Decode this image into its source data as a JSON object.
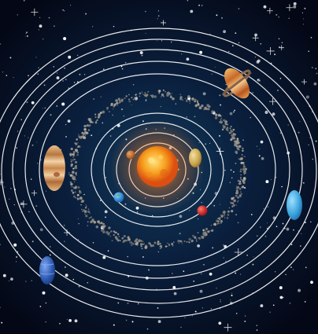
{
  "scene": {
    "subject": "solar-system",
    "palette": {
      "space_inner": "#123a5c",
      "space_mid": "#0a1f3d",
      "space_outer": "#040816",
      "orbit": "#ffffff",
      "asteroid": "#8f8778",
      "sun_core": "#ffd24a",
      "sun_edge": "#e0560f",
      "sun_glow": "#ff9a1f"
    },
    "bodies": [
      {
        "name": "sun",
        "color": "#f08a1c"
      },
      {
        "name": "mercury",
        "color": "#b8692c"
      },
      {
        "name": "venus",
        "color": "#c9a54c"
      },
      {
        "name": "earth",
        "color": "#3d8fd6"
      },
      {
        "name": "mars",
        "color": "#c3272b"
      },
      {
        "name": "jupiter",
        "color": "#d9a56b"
      },
      {
        "name": "saturn",
        "color": "#d98a3a"
      },
      {
        "name": "uranus",
        "color": "#4fb6e6"
      },
      {
        "name": "neptune",
        "color": "#2f5fb0"
      }
    ],
    "orbit_count": 9,
    "has_asteroid_belt": true
  }
}
